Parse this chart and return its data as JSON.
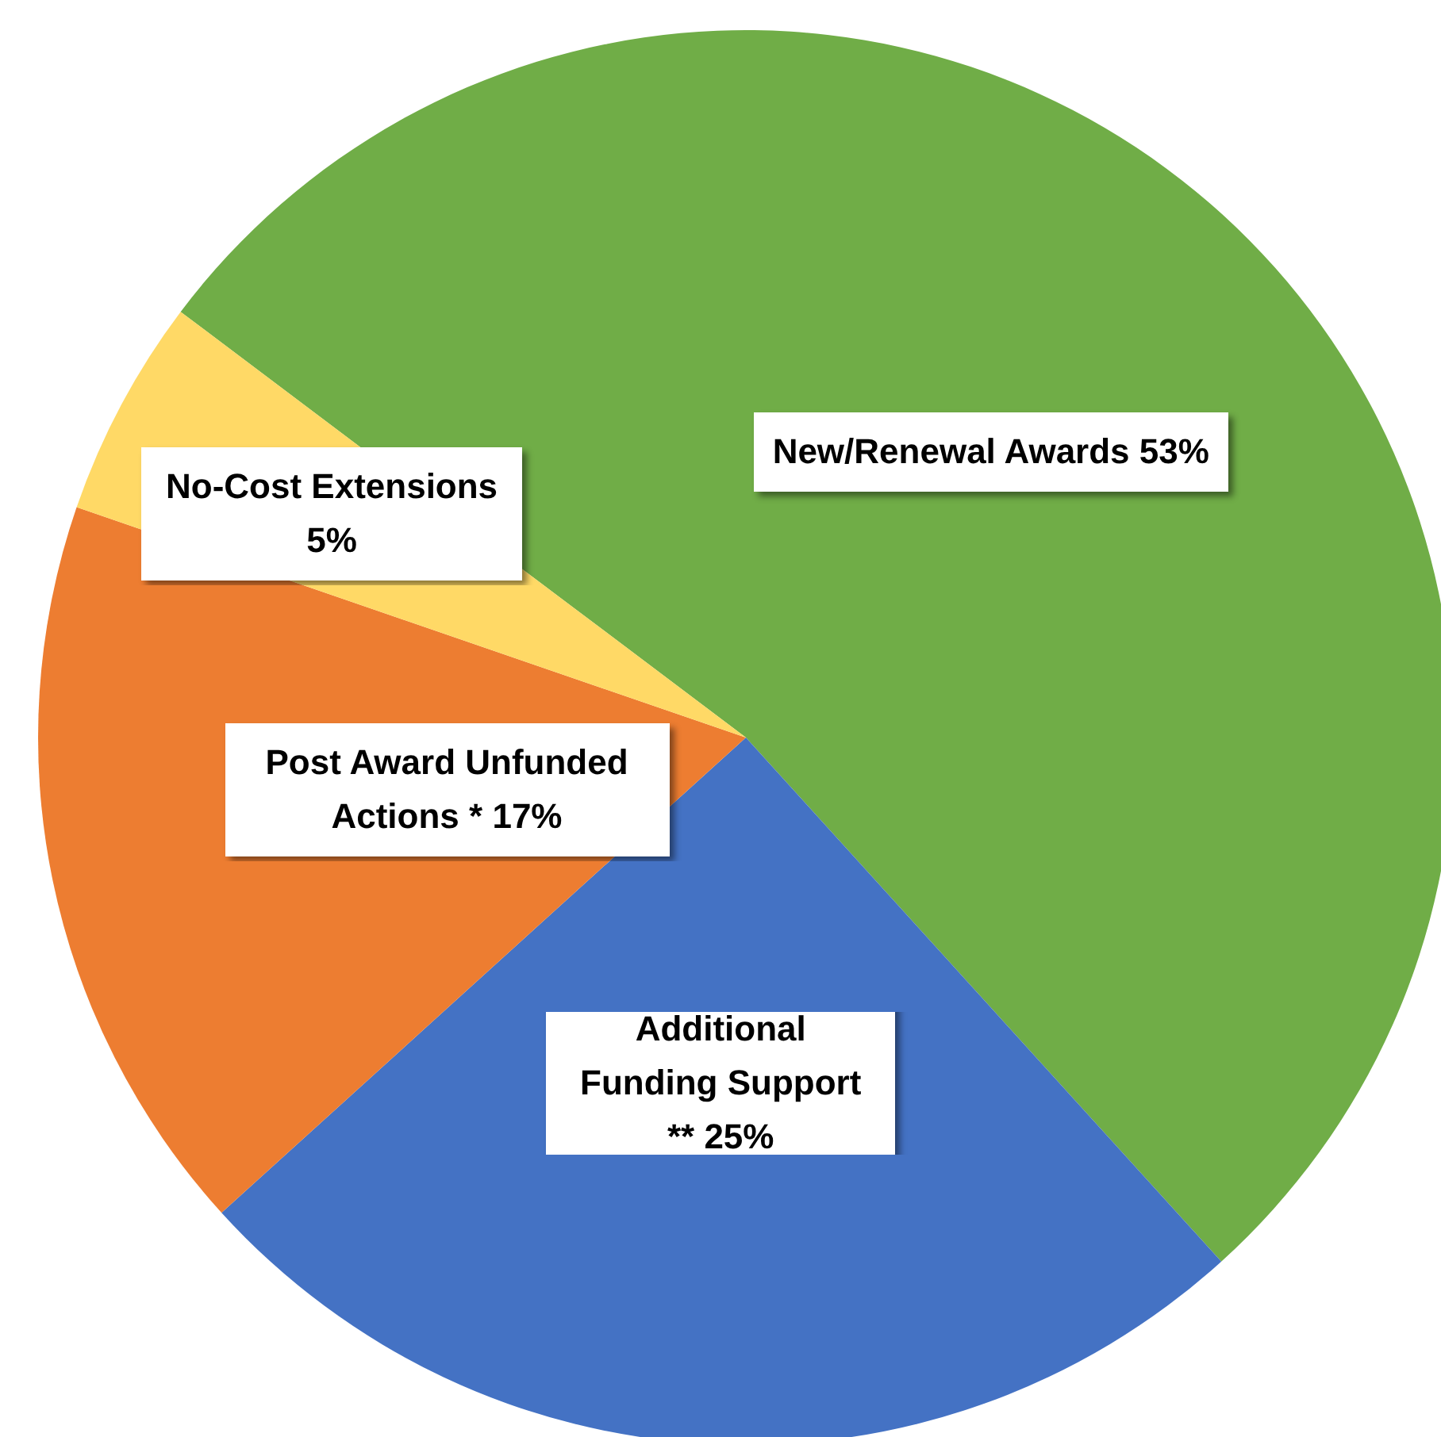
{
  "chart_data": {
    "type": "pie",
    "categories": [
      "New/Renewal Awards",
      "Additional Funding Support **",
      "Post Award Unfunded Actions *",
      "No-Cost Extensions"
    ],
    "values": [
      53,
      25,
      17,
      5
    ],
    "value_labels": [
      "53%",
      "25%",
      "17%",
      "5%"
    ],
    "colors": [
      "#70ad47",
      "#4472c4",
      "#ed7d31",
      "#ffd966"
    ],
    "legend": false
  }
}
